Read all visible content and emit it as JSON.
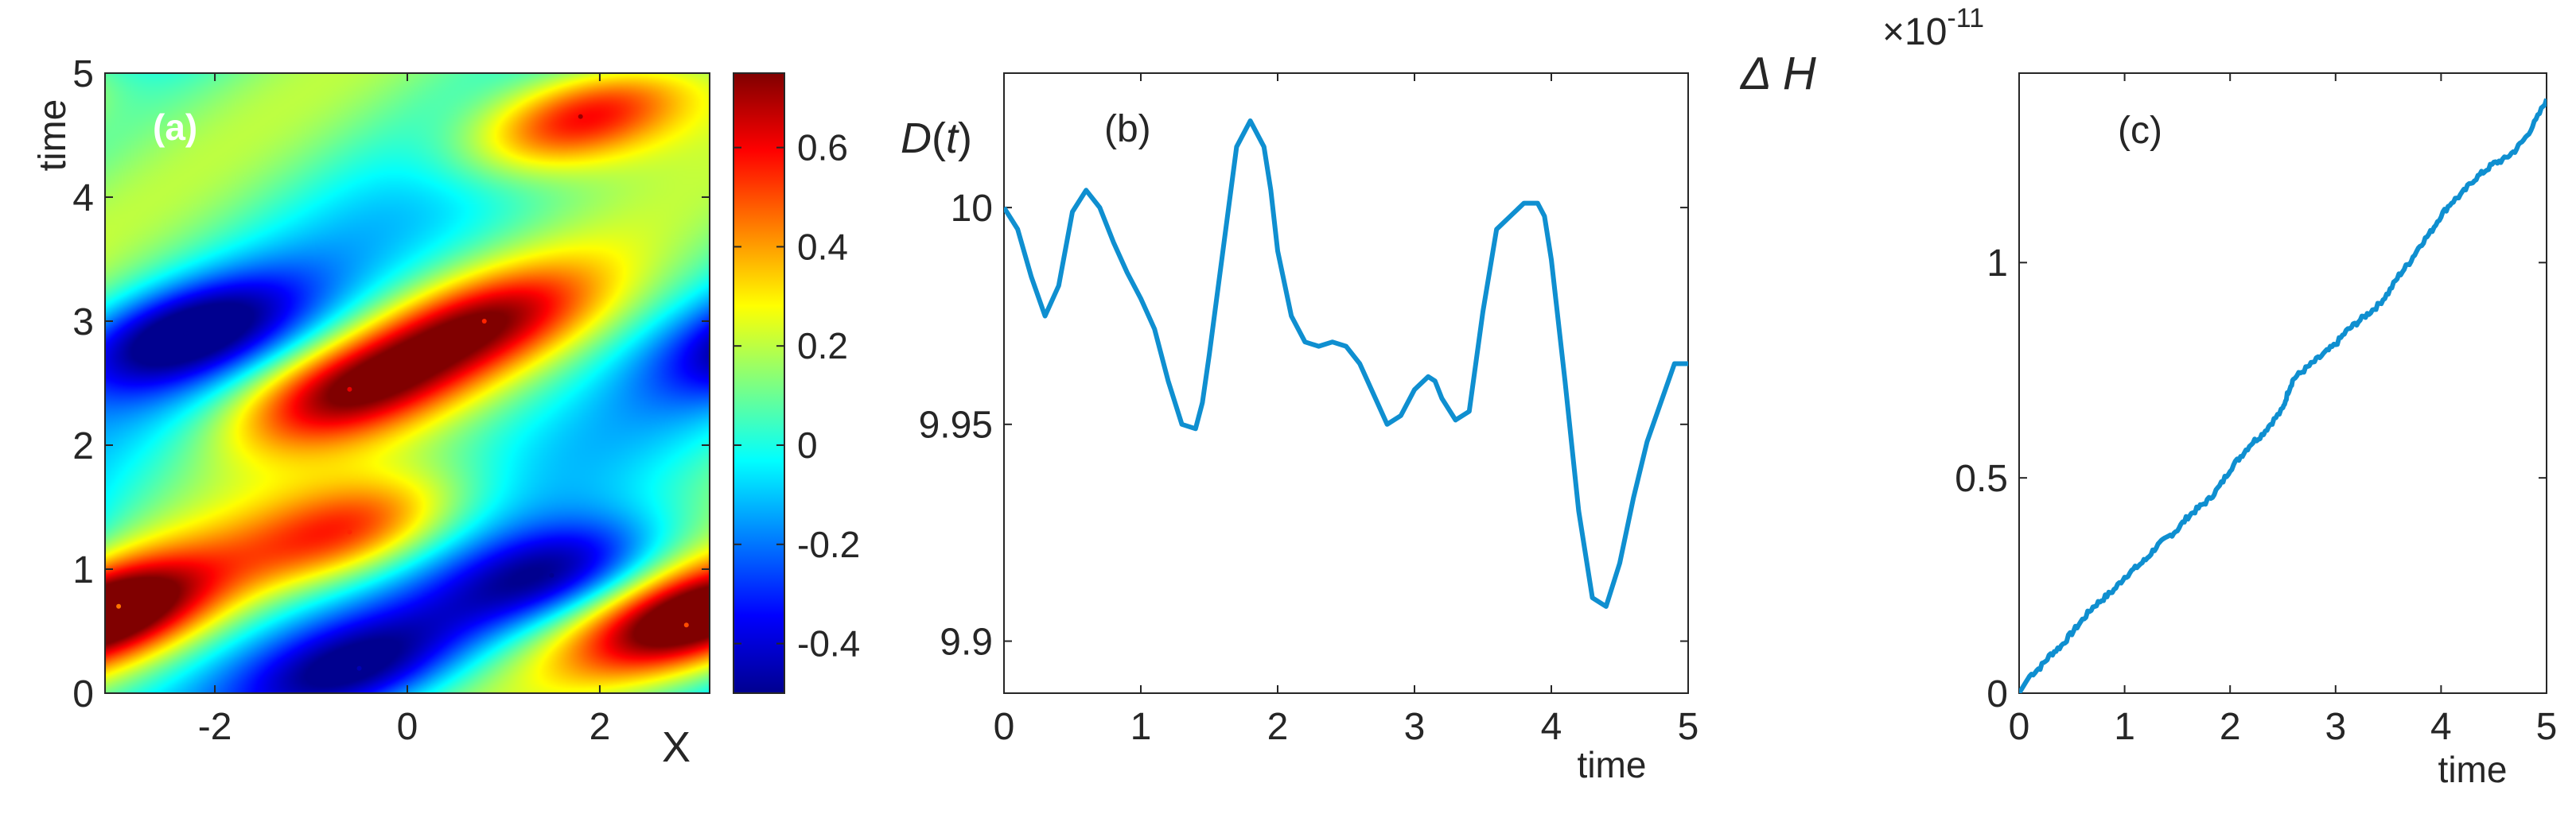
{
  "chart_data": [
    {
      "type": "heatmap",
      "panel_label": "(a)",
      "xlabel": "X",
      "ylabel": "time",
      "xlim": [
        -3.14159,
        3.14159
      ],
      "ylim": [
        0,
        5
      ],
      "xticks": [
        -2,
        0,
        2
      ],
      "xtick_labels": [
        "-2",
        "0",
        "2"
      ],
      "yticks": [
        0,
        1,
        2,
        3,
        4,
        5
      ],
      "ytick_labels": [
        "0",
        "1",
        "2",
        "3",
        "4",
        "5"
      ],
      "colormap": "jet",
      "clim": [
        -0.5,
        0.75
      ],
      "colorbar_ticks": [
        -0.4,
        -0.2,
        0,
        0.2,
        0.4,
        0.6
      ],
      "colorbar_tick_labels": [
        "-0.4",
        "-0.2",
        "0",
        "0.2",
        "0.4",
        "0.6"
      ],
      "features": [
        {
          "kind": "max",
          "x": 1.8,
          "t": 4.65,
          "value": 0.72
        },
        {
          "kind": "max",
          "x": 0.8,
          "t": 3.0,
          "value": 0.55
        },
        {
          "kind": "max",
          "x": -0.6,
          "t": 2.45,
          "value": 0.62
        },
        {
          "kind": "max",
          "x": -0.6,
          "t": 1.3,
          "value": 0.55
        },
        {
          "kind": "max",
          "x": 2.9,
          "t": 0.55,
          "value": 0.5
        },
        {
          "kind": "max",
          "x": -3.0,
          "t": 0.7,
          "value": 0.45
        },
        {
          "kind": "min",
          "x": -2.3,
          "t": 2.9,
          "value": -0.5
        },
        {
          "kind": "min",
          "x": 1.5,
          "t": 0.95,
          "value": -0.5
        },
        {
          "kind": "min",
          "x": -0.5,
          "t": 0.2,
          "value": -0.45
        }
      ]
    },
    {
      "type": "line",
      "panel_label": "(b)",
      "xlabel": "time",
      "ylabel": "D(t)",
      "xlim": [
        0,
        5
      ],
      "ylim": [
        9.888,
        10.031
      ],
      "xticks": [
        0,
        1,
        2,
        3,
        4,
        5
      ],
      "xtick_labels": [
        "0",
        "1",
        "2",
        "3",
        "4",
        "5"
      ],
      "yticks": [
        9.9,
        9.95,
        10
      ],
      "ytick_labels": [
        "9.9",
        "9.95",
        "10"
      ],
      "series": [
        {
          "color": "#0f8fd0",
          "x": [
            0,
            0.1,
            0.2,
            0.3,
            0.4,
            0.5,
            0.6,
            0.7,
            0.8,
            0.9,
            1.0,
            1.1,
            1.2,
            1.3,
            1.4,
            1.45,
            1.5,
            1.6,
            1.7,
            1.8,
            1.9,
            1.95,
            2.0,
            2.1,
            2.2,
            2.3,
            2.4,
            2.5,
            2.6,
            2.7,
            2.8,
            2.9,
            3.0,
            3.1,
            3.15,
            3.2,
            3.3,
            3.4,
            3.5,
            3.6,
            3.7,
            3.8,
            3.9,
            3.95,
            4.0,
            4.1,
            4.2,
            4.3,
            4.4,
            4.5,
            4.6,
            4.7,
            4.8,
            4.9,
            5.0
          ],
          "y": [
            10.0,
            9.995,
            9.984,
            9.975,
            9.982,
            9.999,
            10.004,
            10.0,
            9.992,
            9.985,
            9.979,
            9.972,
            9.96,
            9.95,
            9.949,
            9.955,
            9.966,
            9.99,
            10.014,
            10.02,
            10.014,
            10.004,
            9.99,
            9.975,
            9.969,
            9.968,
            9.969,
            9.968,
            9.964,
            9.957,
            9.95,
            9.952,
            9.958,
            9.961,
            9.96,
            9.956,
            9.951,
            9.953,
            9.976,
            9.995,
            9.998,
            10.001,
            10.001,
            9.998,
            9.988,
            9.96,
            9.93,
            9.91,
            9.908,
            9.918,
            9.933,
            9.946,
            9.955,
            9.964,
            9.964
          ]
        }
      ]
    },
    {
      "type": "line",
      "panel_label": "(c)",
      "xlabel": "time",
      "ylabel": "Δ H",
      "y_multiplier": "×10",
      "y_multiplier_exponent": "-11",
      "xlim": [
        0,
        5
      ],
      "ylim": [
        0,
        1.44
      ],
      "xticks": [
        0,
        1,
        2,
        3,
        4,
        5
      ],
      "xtick_labels": [
        "0",
        "1",
        "2",
        "3",
        "4",
        "5"
      ],
      "yticks": [
        0,
        0.5,
        1
      ],
      "ytick_labels": [
        "0",
        "0.5",
        "1"
      ],
      "series": [
        {
          "color": "#0f8fd0",
          "x": [
            0,
            0.1,
            0.2,
            0.3,
            0.4,
            0.5,
            0.6,
            0.7,
            0.8,
            0.9,
            1.0,
            1.1,
            1.2,
            1.3,
            1.4,
            1.5,
            1.6,
            1.7,
            1.8,
            1.9,
            2.0,
            2.1,
            2.2,
            2.3,
            2.4,
            2.5,
            2.55,
            2.6,
            2.7,
            2.8,
            2.9,
            3.0,
            3.1,
            3.2,
            3.3,
            3.4,
            3.5,
            3.6,
            3.7,
            3.8,
            3.9,
            4.0,
            4.1,
            4.2,
            4.3,
            4.4,
            4.5,
            4.6,
            4.7,
            4.8,
            4.9,
            5.0
          ],
          "y": [
            0.0,
            0.04,
            0.06,
            0.09,
            0.11,
            0.14,
            0.17,
            0.2,
            0.22,
            0.24,
            0.27,
            0.29,
            0.31,
            0.34,
            0.36,
            0.38,
            0.41,
            0.43,
            0.45,
            0.48,
            0.52,
            0.55,
            0.58,
            0.6,
            0.63,
            0.66,
            0.7,
            0.73,
            0.75,
            0.77,
            0.79,
            0.81,
            0.84,
            0.86,
            0.88,
            0.9,
            0.93,
            0.97,
            1.0,
            1.04,
            1.07,
            1.11,
            1.14,
            1.16,
            1.19,
            1.21,
            1.23,
            1.24,
            1.26,
            1.29,
            1.33,
            1.38
          ]
        }
      ]
    }
  ]
}
